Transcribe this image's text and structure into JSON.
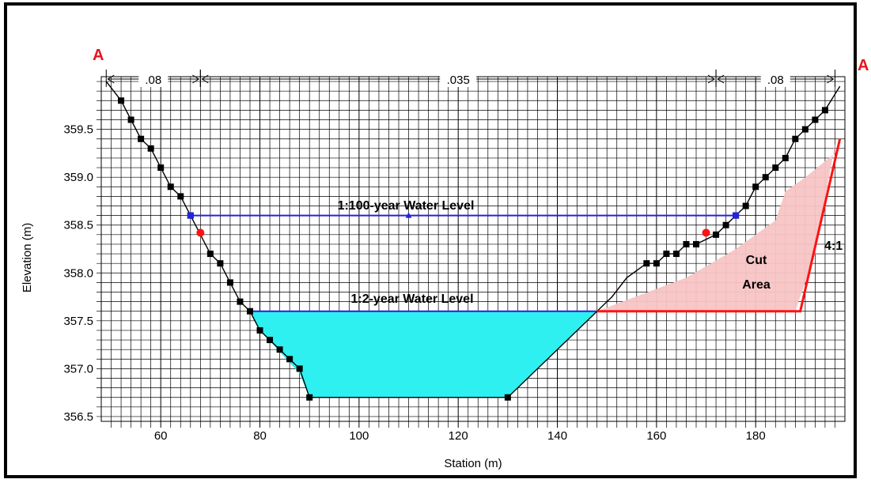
{
  "chart_data": {
    "type": "line",
    "xlabel": "Station (m)",
    "ylabel": "Elevation (m)",
    "xlim": [
      48,
      198
    ],
    "ylim": [
      356.45,
      360.05
    ],
    "x_ticks": [
      60,
      80,
      100,
      120,
      140,
      160,
      180
    ],
    "y_ticks": [
      356.5,
      357.0,
      357.5,
      358.0,
      358.5,
      359.0,
      359.5
    ],
    "x_tick_labels": [
      "60",
      "80",
      "100",
      "120",
      "140",
      "160",
      "180"
    ],
    "y_tick_labels": [
      "356.5",
      "357.0",
      "357.5",
      "358.0",
      "358.5",
      "359.0",
      "359.5"
    ],
    "grid": true,
    "series": [
      {
        "name": "",
        "role": "existing-ground",
        "color": "#000000",
        "points": [
          [
            52,
            359.8
          ],
          [
            54,
            359.6
          ],
          [
            56,
            359.4
          ],
          [
            58,
            359.3
          ],
          [
            60,
            359.1
          ],
          [
            62,
            358.9
          ],
          [
            64,
            358.8
          ],
          [
            66,
            358.6
          ],
          [
            70,
            358.2
          ],
          [
            72,
            358.1
          ],
          [
            74,
            357.9
          ],
          [
            76,
            357.7
          ],
          [
            78,
            357.6
          ],
          [
            80,
            357.4
          ],
          [
            82,
            357.3
          ],
          [
            84,
            357.2
          ],
          [
            86,
            357.1
          ],
          [
            88,
            357.0
          ],
          [
            90,
            356.7
          ],
          [
            130,
            356.7
          ],
          [
            158,
            358.1
          ],
          [
            160,
            358.1
          ],
          [
            162,
            358.2
          ],
          [
            164,
            358.2
          ],
          [
            166,
            358.3
          ],
          [
            168,
            358.3
          ],
          [
            172,
            358.4
          ],
          [
            174,
            358.5
          ],
          [
            176,
            358.6
          ],
          [
            178,
            358.7
          ],
          [
            180,
            358.9
          ],
          [
            182,
            359.0
          ],
          [
            184,
            359.1
          ],
          [
            186,
            359.2
          ],
          [
            188,
            359.4
          ],
          [
            190,
            359.5
          ],
          [
            192,
            359.6
          ],
          [
            194,
            359.7
          ]
        ],
        "line_only_points": [
          [
            92,
            356.7
          ],
          [
            148,
            357.6
          ],
          [
            151,
            357.75
          ],
          [
            154,
            357.95
          ],
          [
            197,
            359.95
          ],
          [
            49,
            360.0
          ]
        ]
      },
      {
        "name": "1:100-year Water Level",
        "role": "water-level",
        "color": "#2323d8",
        "points": [
          [
            66,
            358.6
          ],
          [
            110,
            358.6
          ],
          [
            176,
            358.6
          ]
        ]
      },
      {
        "name": "1:2-year Water Level",
        "role": "water-level",
        "color": "#2323d8",
        "points": [
          [
            78,
            357.6
          ],
          [
            148,
            357.6
          ]
        ]
      }
    ],
    "bank_stations": [
      [
        68,
        358.42
      ],
      [
        170,
        358.42
      ]
    ],
    "water_fill": {
      "color": "#2ff0f0",
      "points": [
        [
          78,
          357.6
        ],
        [
          148,
          357.6
        ],
        [
          130,
          356.7
        ],
        [
          90,
          356.7
        ],
        [
          88,
          356.95
        ],
        [
          80,
          357.4
        ]
      ]
    },
    "cut_area": {
      "fill": "#f8c4c4",
      "polygon": [
        [
          148,
          357.6
        ],
        [
          166,
          357.95
        ],
        [
          176,
          358.25
        ],
        [
          184,
          358.55
        ],
        [
          186,
          358.85
        ],
        [
          190,
          359.0
        ],
        [
          196,
          359.25
        ],
        [
          196,
          359.35
        ],
        [
          192,
          358.2
        ],
        [
          188,
          357.6
        ]
      ]
    },
    "red_outline": {
      "color": "#ff1212",
      "points": [
        [
          148,
          357.6
        ],
        [
          189,
          357.6
        ],
        [
          197,
          359.4
        ]
      ]
    },
    "manning_n": [
      {
        "label": ".08",
        "from": 49,
        "to": 68
      },
      {
        "label": ".035",
        "from": 68,
        "to": 172
      },
      {
        "label": ".08",
        "from": 172,
        "to": 196
      }
    ],
    "annotations": {
      "level_100": "1:100-year Water Level",
      "level_2": "1:2-year Water Level",
      "cut_line1": "Cut",
      "cut_line2": "Area",
      "slope": "4:1",
      "section_left": "A",
      "section_right": "A"
    }
  }
}
